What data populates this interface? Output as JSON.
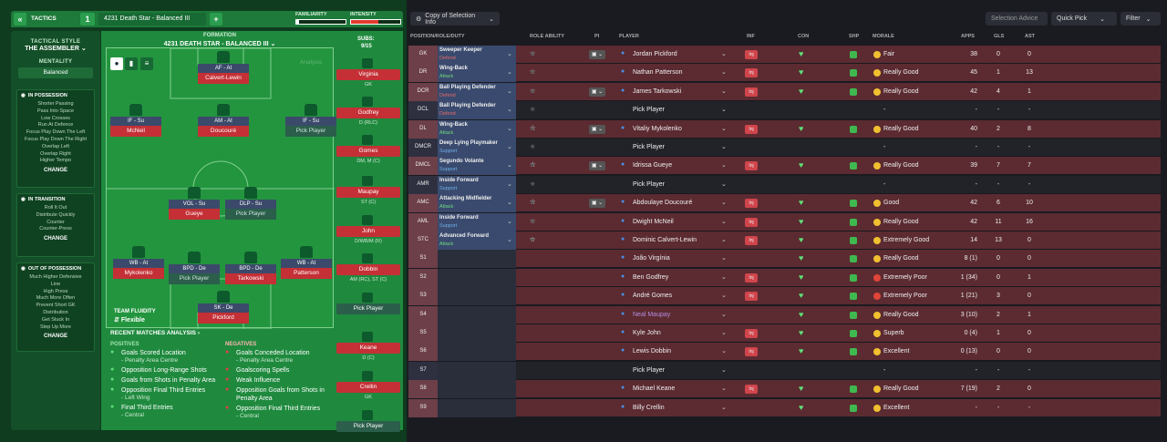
{
  "colors": {
    "accent": "#2a9d4e",
    "red_row": "#5b2b31",
    "dark_row": "#222329"
  },
  "topbar": {
    "back": "«",
    "tactics_label": "TACTICS",
    "slot": "1",
    "tactic_name": "4231 Death Star - Balanced III",
    "add": "+",
    "familiarity_label": "FAMILIARITY",
    "intensity_label": "INTENSITY",
    "familiarity_value": 0.06,
    "intensity_value": 0.55
  },
  "side": {
    "style_label": "TACTICAL STYLE",
    "style_name": "THE ASSEMBLER",
    "mentality_label": "MENTALITY",
    "mentality_value": "Balanced",
    "in_possession": {
      "title": "IN POSSESSION",
      "items": [
        "Shorter Passing",
        "Pass Into Space",
        "Low Crosses",
        "Run At Defence",
        "Focus Play Down The Left",
        "Focus Play Down The Right",
        "Overlap Left",
        "Overlap Right",
        "Higher Tempo"
      ],
      "change": "CHANGE"
    },
    "in_transition": {
      "title": "IN TRANSITION",
      "items": [
        "Roll It Out",
        "Distribute Quickly",
        "Counter",
        "Counter-Press"
      ],
      "change": "CHANGE"
    },
    "out_of_possession": {
      "title": "OUT OF POSSESSION",
      "items": [
        "Much Higher Defensive",
        "Line",
        "High Press",
        "Much More Often",
        "Prevent Short GK",
        "Distribution",
        "Get Stuck In",
        "Step Up More"
      ],
      "change": "CHANGE"
    }
  },
  "formation": {
    "label": "FORMATION",
    "name": "4231 DEATH STAR - BALANCED III",
    "subs_label": "SUBS:",
    "subs_value": "9/15",
    "analysis": "Analysis",
    "fluidity_label": "TEAM FLUIDITY",
    "fluidity_value": "Flexible"
  },
  "players_on_pitch": [
    {
      "role": "AF - At",
      "name": "Calvert-Lewin",
      "empty": false
    },
    {
      "role": "IF - Su",
      "name": "McNeil",
      "empty": false
    },
    {
      "role": "AM - At",
      "name": "Doucouré",
      "empty": false
    },
    {
      "role": "IF - Su",
      "name": "Pick Player",
      "empty": true
    },
    {
      "role": "VOL - Su",
      "name": "Gueye",
      "empty": false
    },
    {
      "role": "DLP - Su",
      "name": "Pick Player",
      "empty": true
    },
    {
      "role": "WB - At",
      "name": "Mykolenko",
      "empty": false
    },
    {
      "role": "BPD - De",
      "name": "Pick Player",
      "empty": true
    },
    {
      "role": "BPD - De",
      "name": "Tarkowski",
      "empty": false
    },
    {
      "role": "WB - At",
      "name": "Patterson",
      "empty": false
    },
    {
      "role": "SK - De",
      "name": "Pickford",
      "empty": false
    }
  ],
  "subs": [
    {
      "name": "Virginia",
      "pos": "GK",
      "empty": false
    },
    {
      "name": "Godfrey",
      "pos": "D (RLC)",
      "empty": false
    },
    {
      "name": "Gomes",
      "pos": "DM, M (C)",
      "empty": false
    },
    {
      "name": "Maupay",
      "pos": "ST (C)",
      "empty": false
    },
    {
      "name": "John",
      "pos": "D/WB/M (R)",
      "empty": false
    },
    {
      "name": "Dobbin",
      "pos": "AM (RC), ST (C)",
      "empty": false
    },
    {
      "name": "Pick Player",
      "pos": "",
      "empty": true
    },
    {
      "name": "Keane",
      "pos": "D (C)",
      "empty": false
    },
    {
      "name": "Crellin",
      "pos": "GK",
      "empty": false
    },
    {
      "name": "Pick Player",
      "pos": "",
      "empty": true
    }
  ],
  "analysis": {
    "title": "RECENT MATCHES ANALYSIS ›",
    "positives_label": "POSITIVES",
    "positives": [
      {
        "t": "Goals Scored Location",
        "s": "- Penalty Area Centre"
      },
      {
        "t": "Opposition Long-Range Shots",
        "s": ""
      },
      {
        "t": "Goals from Shots in Penalty Area",
        "s": ""
      },
      {
        "t": "Opposition Final Third Entries",
        "s": "- Left Wing"
      },
      {
        "t": "Final Third Entries",
        "s": "- Central"
      }
    ],
    "negatives_label": "NEGATIVES",
    "negatives": [
      {
        "t": "Goals Conceded Location",
        "s": "- Penalty Area Centre"
      },
      {
        "t": "Goalscoring Spells",
        "s": ""
      },
      {
        "t": "Weak Influence",
        "s": ""
      },
      {
        "t": "Opposition Goals from Shots in Penalty Area",
        "s": ""
      },
      {
        "t": "Opposition Final Third Entries",
        "s": "- Central"
      }
    ]
  },
  "toolbar": {
    "copy": "Copy of Selection Info",
    "advice": "Selection Advice",
    "quick_pick": "Quick Pick",
    "filter": "Filter"
  },
  "columns": [
    "POSITION/ROLE/DUTY",
    "ROLE ABILITY",
    "PI",
    "PLAYER",
    "INF",
    "CON",
    "SHP",
    "MORALE",
    "APPS",
    "GLS",
    "AST"
  ],
  "rows": [
    {
      "pos": "GK",
      "role": "Sweeper Keeper",
      "duty": "Defend",
      "stars": 3,
      "player": "Jordan Pickford",
      "inf": "Inj",
      "morale": "Fair",
      "apps": "38",
      "gls": "0",
      "ast": "0",
      "red": true
    },
    {
      "pos": "DR",
      "role": "Wing-Back",
      "duty": "Attack",
      "stars": 3,
      "player": "Nathan Patterson",
      "inf": "Inj",
      "morale": "Really Good",
      "apps": "45",
      "gls": "1",
      "ast": "13",
      "red": true
    },
    {
      "pos": "DCR",
      "role": "Ball Playing Defender",
      "duty": "Defend",
      "stars": 3,
      "player": "James Tarkowski",
      "inf": "Inj",
      "morale": "Really Good",
      "apps": "42",
      "gls": "4",
      "ast": "1",
      "red": true
    },
    {
      "pos": "DCL",
      "role": "Ball Playing Defender",
      "duty": "Defend",
      "stars": 0,
      "player": "Pick Player",
      "inf": "",
      "morale": "-",
      "apps": "-",
      "gls": "-",
      "ast": "-",
      "red": false
    },
    {
      "pos": "DL",
      "role": "Wing-Back",
      "duty": "Attack",
      "stars": 2.5,
      "player": "Vitaliy Mykolenko",
      "inf": "Inj",
      "morale": "Really Good",
      "apps": "40",
      "gls": "2",
      "ast": "8",
      "red": true
    },
    {
      "pos": "DMCR",
      "role": "Deep Lying Playmaker",
      "duty": "Support",
      "stars": 0,
      "player": "Pick Player",
      "inf": "",
      "morale": "-",
      "apps": "-",
      "gls": "-",
      "ast": "-",
      "red": false
    },
    {
      "pos": "DMCL",
      "role": "Segundo Volante",
      "duty": "Support",
      "stars": 2.5,
      "player": "Idrissa Gueye",
      "inf": "Inj",
      "morale": "Really Good",
      "apps": "39",
      "gls": "7",
      "ast": "7",
      "red": true
    },
    {
      "pos": "AMR",
      "role": "Inside Forward",
      "duty": "Support",
      "stars": 0,
      "player": "Pick Player",
      "inf": "",
      "morale": "-",
      "apps": "-",
      "gls": "-",
      "ast": "-",
      "red": false
    },
    {
      "pos": "AMC",
      "role": "Attacking Midfielder",
      "duty": "Attack",
      "stars": 2.5,
      "player": "Abdoulaye Doucouré",
      "inf": "Inj",
      "morale": "Good",
      "apps": "42",
      "gls": "6",
      "ast": "10",
      "red": true
    },
    {
      "pos": "AML",
      "role": "Inside Forward",
      "duty": "Support",
      "stars": 3,
      "player": "Dwight McNeil",
      "inf": "Inj",
      "morale": "Really Good",
      "apps": "42",
      "gls": "11",
      "ast": "16",
      "red": true
    },
    {
      "pos": "STC",
      "role": "Advanced Forward",
      "duty": "Attack",
      "stars": 4,
      "player": "Dominic Calvert-Lewin",
      "inf": "Inj",
      "morale": "Extremely Good",
      "apps": "14",
      "gls": "13",
      "ast": "0",
      "red": true
    },
    {
      "pos": "S1",
      "role": "",
      "duty": "",
      "stars": 0,
      "player": "João Virgínia",
      "inf": "",
      "morale": "Really Good",
      "apps": "8 (1)",
      "gls": "0",
      "ast": "0",
      "red": true
    },
    {
      "pos": "S2",
      "role": "",
      "duty": "",
      "stars": 0,
      "player": "Ben Godfrey",
      "inf": "Inj",
      "morale": "Extremely Poor",
      "apps": "1 (34)",
      "gls": "0",
      "ast": "1",
      "red": true
    },
    {
      "pos": "S3",
      "role": "",
      "duty": "",
      "stars": 0,
      "player": "André Gomes",
      "inf": "Inj",
      "morale": "Extremely Poor",
      "apps": "1 (21)",
      "gls": "3",
      "ast": "0",
      "red": true
    },
    {
      "pos": "S4",
      "role": "",
      "duty": "",
      "stars": 0,
      "player": "Neal Maupay",
      "inf": "",
      "morale": "Really Good",
      "apps": "3 (10)",
      "gls": "2",
      "ast": "1",
      "red": true
    },
    {
      "pos": "S5",
      "role": "",
      "duty": "",
      "stars": 0,
      "player": "Kyle John",
      "inf": "Inj",
      "morale": "Superb",
      "apps": "0 (4)",
      "gls": "1",
      "ast": "0",
      "red": true
    },
    {
      "pos": "S6",
      "role": "",
      "duty": "",
      "stars": 0,
      "player": "Lewis Dobbin",
      "inf": "Inj",
      "morale": "Excellent",
      "apps": "0 (13)",
      "gls": "0",
      "ast": "0",
      "red": true
    },
    {
      "pos": "S7",
      "role": "",
      "duty": "",
      "stars": 0,
      "player": "Pick Player",
      "inf": "",
      "morale": "-",
      "apps": "-",
      "gls": "-",
      "ast": "-",
      "red": false
    },
    {
      "pos": "S8",
      "role": "",
      "duty": "",
      "stars": 0,
      "player": "Michael Keane",
      "inf": "Inj",
      "morale": "Really Good",
      "apps": "7 (19)",
      "gls": "2",
      "ast": "0",
      "red": true
    },
    {
      "pos": "S9",
      "role": "",
      "duty": "",
      "stars": 0,
      "player": "Billy Crellin",
      "inf": "",
      "morale": "Excellent",
      "apps": "-",
      "gls": "-",
      "ast": "-",
      "red": true
    }
  ]
}
